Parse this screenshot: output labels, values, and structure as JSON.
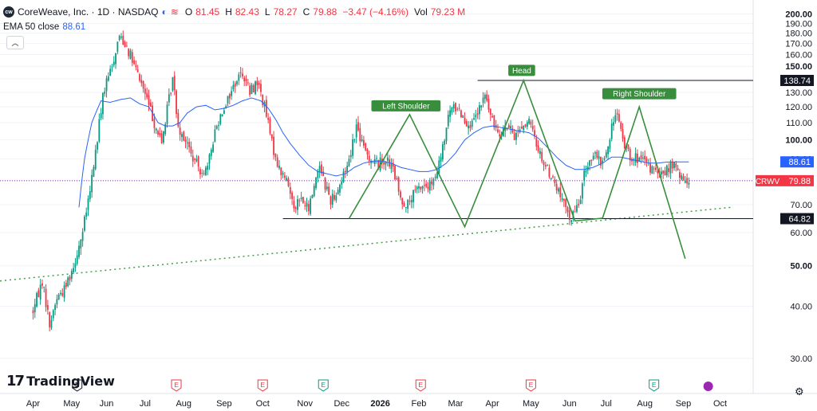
{
  "header": {
    "logo_text": "cw",
    "title": "CoreWeave, Inc. · 1D · NASDAQ",
    "market_icon": "moon-icon",
    "flag_icon": "wave-icon",
    "ohlc": [
      {
        "k": "O",
        "v": "81.45"
      },
      {
        "k": "H",
        "v": "82.43"
      },
      {
        "k": "L",
        "v": "78.27"
      },
      {
        "k": "C",
        "v": "79.88"
      },
      {
        "k": "",
        "v": "−3.47 (−4.16%)"
      },
      {
        "k": "Vol",
        "v": "79.23 M"
      }
    ]
  },
  "indicator": {
    "label": "EMA 50 close",
    "value": "88.61"
  },
  "collapse_icon": "chevron-up-icon",
  "brand": {
    "mark": "17",
    "name": "TradingView"
  },
  "settings_icon": "gear-icon",
  "colors": {
    "up": "#089981",
    "down": "#f23645",
    "ema": "#2962ff",
    "pattern": "#388e3c",
    "trend": "#43a047",
    "price_line": "#9c27b0"
  },
  "chart_data": {
    "type": "candlestick",
    "symbol": "CRWV",
    "y_scale": "log",
    "ylim": [
      27.5,
      205
    ],
    "y_ticks": [
      "30.00",
      "40.00",
      "50.00",
      "60.00",
      "70.00",
      "80.00",
      "90.00",
      "100.00",
      "110.00",
      "120.00",
      "130.00",
      "140.00",
      "150.00",
      "160.00",
      "170.00",
      "180.00",
      "190.00",
      "200.00"
    ],
    "x_ticks": [
      {
        "label": "Apr",
        "i": 0
      },
      {
        "label": "May",
        "i": 21
      },
      {
        "label": "Jun",
        "i": 40
      },
      {
        "label": "Jul",
        "i": 61
      },
      {
        "label": "Aug",
        "i": 82
      },
      {
        "label": "Sep",
        "i": 104
      },
      {
        "label": "Oct",
        "i": 125
      },
      {
        "label": "Nov",
        "i": 148
      },
      {
        "label": "Dec",
        "i": 168
      },
      {
        "label": "2026",
        "i": 189,
        "bold": true
      },
      {
        "label": "Feb",
        "i": 210
      },
      {
        "label": "Mar",
        "i": 230
      },
      {
        "label": "Apr",
        "i": 250
      },
      {
        "label": "May",
        "i": 271
      },
      {
        "label": "Jun",
        "i": 292
      },
      {
        "label": "Jul",
        "i": 312
      },
      {
        "label": "Aug",
        "i": 333
      },
      {
        "label": "Sep",
        "i": 354
      },
      {
        "label": "Oct",
        "i": 374
      }
    ],
    "x_range": [
      -18,
      392
    ],
    "anchors": [
      [
        0,
        39
      ],
      [
        5,
        46
      ],
      [
        9,
        36
      ],
      [
        13,
        42
      ],
      [
        17,
        44
      ],
      [
        22,
        50
      ],
      [
        27,
        60
      ],
      [
        31,
        75
      ],
      [
        35,
        100
      ],
      [
        38,
        128
      ],
      [
        43,
        150
      ],
      [
        47,
        178
      ],
      [
        51,
        168
      ],
      [
        55,
        150
      ],
      [
        58,
        140
      ],
      [
        62,
        125
      ],
      [
        66,
        110
      ],
      [
        70,
        98
      ],
      [
        73,
        118
      ],
      [
        76,
        140
      ],
      [
        79,
        108
      ],
      [
        83,
        100
      ],
      [
        87,
        90
      ],
      [
        91,
        85
      ],
      [
        95,
        85
      ],
      [
        99,
        105
      ],
      [
        103,
        118
      ],
      [
        107,
        128
      ],
      [
        111,
        140
      ],
      [
        114,
        145
      ],
      [
        118,
        130
      ],
      [
        122,
        138
      ],
      [
        126,
        120
      ],
      [
        130,
        98
      ],
      [
        134,
        85
      ],
      [
        138,
        80
      ],
      [
        142,
        70
      ],
      [
        146,
        72
      ],
      [
        150,
        68
      ],
      [
        153,
        78
      ],
      [
        156,
        88
      ],
      [
        159,
        78
      ],
      [
        162,
        72
      ],
      [
        165,
        75
      ],
      [
        168,
        80
      ],
      [
        172,
        90
      ],
      [
        176,
        108
      ],
      [
        180,
        95
      ],
      [
        184,
        90
      ],
      [
        188,
        88
      ],
      [
        192,
        90
      ],
      [
        196,
        85
      ],
      [
        200,
        72
      ],
      [
        204,
        70
      ],
      [
        208,
        75
      ],
      [
        212,
        78
      ],
      [
        215,
        77
      ],
      [
        219,
        80
      ],
      [
        223,
        95
      ],
      [
        227,
        118
      ],
      [
        231,
        120
      ],
      [
        235,
        112
      ],
      [
        239,
        108
      ],
      [
        243,
        118
      ],
      [
        246,
        128
      ],
      [
        250,
        110
      ],
      [
        254,
        105
      ],
      [
        258,
        108
      ],
      [
        262,
        102
      ],
      [
        266,
        108
      ],
      [
        270,
        110
      ],
      [
        274,
        98
      ],
      [
        278,
        88
      ],
      [
        282,
        82
      ],
      [
        286,
        75
      ],
      [
        290,
        68
      ],
      [
        293,
        65
      ],
      [
        297,
        70
      ],
      [
        301,
        86
      ],
      [
        305,
        92
      ],
      [
        309,
        88
      ],
      [
        313,
        95
      ],
      [
        317,
        118
      ],
      [
        321,
        100
      ],
      [
        325,
        92
      ],
      [
        329,
        90
      ],
      [
        333,
        88
      ],
      [
        337,
        85
      ],
      [
        341,
        82
      ],
      [
        345,
        85
      ],
      [
        349,
        87
      ],
      [
        353,
        80
      ],
      [
        357,
        80
      ]
    ],
    "ema_anchors": [
      [
        25,
        69
      ],
      [
        28,
        90
      ],
      [
        32,
        110
      ],
      [
        37,
        124
      ],
      [
        42,
        123
      ],
      [
        48,
        125
      ],
      [
        53,
        126
      ],
      [
        58,
        122
      ],
      [
        63,
        120
      ],
      [
        68,
        110
      ],
      [
        72,
        108
      ],
      [
        76,
        108
      ],
      [
        80,
        110
      ],
      [
        84,
        116
      ],
      [
        89,
        120
      ],
      [
        94,
        121
      ],
      [
        99,
        118
      ],
      [
        104,
        119
      ],
      [
        109,
        121
      ],
      [
        114,
        124
      ],
      [
        119,
        126
      ],
      [
        124,
        124
      ],
      [
        128,
        119
      ],
      [
        132,
        112
      ],
      [
        136,
        104
      ],
      [
        140,
        98
      ],
      [
        145,
        92
      ],
      [
        150,
        87
      ],
      [
        155,
        84
      ],
      [
        160,
        83
      ],
      [
        165,
        82
      ],
      [
        170,
        83
      ],
      [
        175,
        86
      ],
      [
        180,
        88
      ],
      [
        185,
        89
      ],
      [
        190,
        89
      ],
      [
        195,
        88
      ],
      [
        200,
        86
      ],
      [
        205,
        85
      ],
      [
        210,
        84
      ],
      [
        215,
        84
      ],
      [
        220,
        85
      ],
      [
        225,
        88
      ],
      [
        230,
        93
      ],
      [
        235,
        100
      ],
      [
        240,
        104
      ],
      [
        245,
        107
      ],
      [
        250,
        108
      ],
      [
        255,
        107
      ],
      [
        260,
        106
      ],
      [
        265,
        105
      ],
      [
        270,
        104
      ],
      [
        275,
        101
      ],
      [
        280,
        96
      ],
      [
        285,
        91
      ],
      [
        290,
        87
      ],
      [
        295,
        85
      ],
      [
        300,
        85
      ],
      [
        305,
        86
      ],
      [
        310,
        88
      ],
      [
        315,
        91
      ],
      [
        320,
        91
      ],
      [
        325,
        90
      ],
      [
        330,
        89
      ],
      [
        335,
        88
      ],
      [
        340,
        88
      ],
      [
        345,
        88.5
      ],
      [
        350,
        88.6
      ],
      [
        357,
        88.61
      ]
    ],
    "patterns": [
      {
        "name": "head_and_shoulders_1",
        "points": [
          [
            172,
            64.82
          ],
          [
            205,
            115
          ],
          [
            235,
            62
          ],
          [
            267,
            138.74
          ],
          [
            295,
            64
          ],
          [
            310,
            65
          ],
          [
            330,
            120
          ],
          [
            355,
            52
          ]
        ]
      }
    ],
    "labels": [
      {
        "text": "Left Shoulder",
        "i": 203,
        "y": 116
      },
      {
        "text": "Head",
        "i": 266,
        "y": 141
      },
      {
        "text": "Right Shoulder",
        "i": 330,
        "y": 124
      }
    ],
    "levels": [
      {
        "value": 138.74,
        "label": "138.74",
        "from_i": 242
      },
      {
        "value": 64.82,
        "label": "64.82",
        "from_i": 136
      }
    ],
    "trendline": {
      "p1": [
        -18,
        46
      ],
      "p2": [
        380,
        69
      ],
      "style": "dotted"
    },
    "last_price": {
      "value": 79.88,
      "label": "79.88",
      "symbol": "CRWV"
    },
    "ema_label": {
      "value": 88.61,
      "label": "88.61"
    },
    "earnings_markers": [
      {
        "i": 24,
        "label": "E",
        "type": "past"
      },
      {
        "i": 78,
        "label": "E",
        "type": "next"
      },
      {
        "i": 125,
        "label": "E",
        "type": "next"
      },
      {
        "i": 158,
        "label": "E",
        "type": "future"
      },
      {
        "i": 211,
        "label": "E",
        "type": "next"
      },
      {
        "i": 271,
        "label": "E",
        "type": "next"
      },
      {
        "i": 338,
        "label": "E",
        "type": "future"
      }
    ]
  }
}
